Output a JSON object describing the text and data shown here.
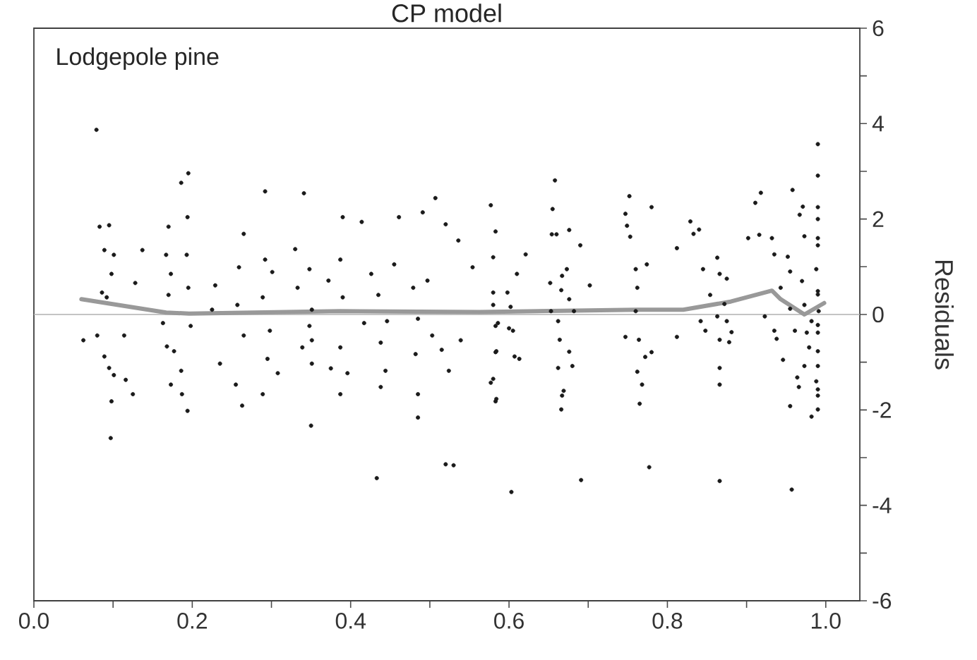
{
  "chart_data": {
    "type": "scatter",
    "title": "CP model",
    "ylabel": "Residuals",
    "annotations": [
      "Lodgepole pine"
    ],
    "xlim": [
      0,
      1.043
    ],
    "ylim": [
      -6,
      6
    ],
    "xticks": [
      {
        "value": 0,
        "label": "0.0"
      },
      {
        "value": 0.1,
        "label": null
      },
      {
        "value": 0.2,
        "label": "0.2"
      },
      {
        "value": 0.3,
        "label": null
      },
      {
        "value": 0.4,
        "label": "0.4"
      },
      {
        "value": 0.5,
        "label": null
      },
      {
        "value": 0.6,
        "label": "0.6"
      },
      {
        "value": 0.7,
        "label": null
      },
      {
        "value": 0.8,
        "label": "0.8"
      },
      {
        "value": 0.9,
        "label": null
      },
      {
        "value": 1.0,
        "label": "1.0"
      }
    ],
    "yticks": [
      -6,
      {
        "value": -5,
        "label": null
      },
      -4,
      {
        "value": -3,
        "label": null
      },
      -2,
      {
        "value": -1,
        "label": null
      },
      0,
      {
        "value": 1,
        "label": null
      },
      2,
      {
        "value": 3,
        "label": null
      },
      4,
      {
        "value": 5,
        "label": null
      },
      6
    ],
    "ref_lines": [
      {
        "axis": "y",
        "value": 0,
        "color": "#b0b0b0"
      }
    ],
    "series": [
      {
        "color": "#1a1a1a",
        "marker": "circle",
        "x": [
          0.079,
          0.097,
          0.186,
          0.195,
          0.292,
          0.341,
          0.35,
          0.53,
          0.507,
          0.577,
          0.083,
          0.095,
          0.089,
          0.101,
          0.098,
          0.086,
          0.092,
          0.08,
          0.089,
          0.095,
          0.101,
          0.098,
          0.0625,
          0.137,
          0.128,
          0.116,
          0.125,
          0.114,
          0.17,
          0.167,
          0.173,
          0.17,
          0.163,
          0.168,
          0.177,
          0.173,
          0.193,
          0.195,
          0.198,
          0.187,
          0.194,
          0.194,
          0.186,
          0.265,
          0.259,
          0.257,
          0.265,
          0.255,
          0.263,
          0.229,
          0.235,
          0.225,
          0.292,
          0.289,
          0.298,
          0.295,
          0.289,
          0.308,
          0.301,
          0.348,
          0.351,
          0.348,
          0.351,
          0.351,
          0.33,
          0.339,
          0.333,
          0.39,
          0.387,
          0.39,
          0.387,
          0.396,
          0.387,
          0.375,
          0.372,
          0.414,
          0.417,
          0.426,
          0.435,
          0.438,
          0.444,
          0.438,
          0.455,
          0.461,
          0.446,
          0.479,
          0.485,
          0.482,
          0.485,
          0.485,
          0.491,
          0.497,
          0.503,
          0.515,
          0.524,
          0.52,
          0.536,
          0.554,
          0.539,
          0.58,
          0.583,
          0.583,
          0.577,
          0.583,
          0.583,
          0.58,
          0.58,
          0.586,
          0.584,
          0.58,
          0.584,
          0.598,
          0.602,
          0.605,
          0.607,
          0.613,
          0.61,
          0.621,
          0.6,
          0.652,
          0.653,
          0.658,
          0.655,
          0.654,
          0.66,
          0.662,
          0.664,
          0.662,
          0.666,
          0.667,
          0.669,
          0.673,
          0.667,
          0.666,
          0.676,
          0.676,
          0.68,
          0.676,
          0.682,
          0.69,
          0.702,
          0.752,
          0.747,
          0.749,
          0.753,
          0.747,
          0.76,
          0.762,
          0.76,
          0.764,
          0.762,
          0.768,
          0.765,
          0.772,
          0.78,
          0.774,
          0.78,
          0.433,
          0.52,
          0.603,
          0.691,
          0.777,
          0.866,
          0.957,
          0.812,
          0.812,
          0.829,
          0.833,
          0.84,
          0.845,
          0.842,
          0.848,
          0.854,
          0.863,
          0.866,
          0.863,
          0.866,
          0.866,
          0.866,
          0.872,
          0.875,
          0.875,
          0.878,
          0.881,
          0.902,
          0.911,
          0.918,
          0.916,
          0.932,
          0.935,
          0.923,
          0.935,
          0.938,
          0.943,
          0.946,
          0.952,
          0.955,
          0.955,
          0.958,
          0.955,
          0.961,
          0.964,
          0.966,
          0.967,
          0.971,
          0.973,
          0.97,
          0.973,
          0.976,
          0.973,
          0.979,
          0.982,
          0.988,
          0.99,
          0.988,
          0.991,
          0.99,
          0.99,
          0.99,
          0.99,
          0.99,
          0.99,
          0.99,
          0.99,
          0.99,
          0.99,
          0.99,
          0.99,
          0.99,
          0.982,
          0.99
        ],
        "values": [
          3.87,
          -2.59,
          2.76,
          2.96,
          2.58,
          2.54,
          -2.33,
          -3.16,
          2.44,
          2.29,
          1.84,
          1.87,
          1.35,
          1.25,
          0.85,
          0.46,
          0.36,
          -0.44,
          -0.88,
          -1.12,
          -1.27,
          -1.82,
          -0.54,
          1.35,
          0.66,
          -1.37,
          -1.67,
          -0.44,
          1.84,
          1.25,
          0.85,
          0.41,
          -0.18,
          -0.67,
          -0.77,
          -1.47,
          1.25,
          0.56,
          -0.24,
          -1.67,
          -2.02,
          2.04,
          -1.18,
          1.69,
          0.99,
          0.2,
          -0.44,
          -1.47,
          -1.91,
          0.61,
          -1.03,
          0.1,
          1.15,
          0.36,
          -0.34,
          -0.93,
          -1.67,
          -1.23,
          0.89,
          0.95,
          0.1,
          -0.24,
          -0.54,
          -1.03,
          1.37,
          -0.69,
          0.56,
          2.04,
          1.15,
          0.36,
          -0.69,
          -1.23,
          -1.67,
          -1.13,
          0.71,
          1.94,
          -0.18,
          0.85,
          0.41,
          -0.59,
          -1.18,
          -1.52,
          1.05,
          2.04,
          -0.14,
          0.56,
          -0.09,
          -0.83,
          -1.67,
          -2.16,
          2.14,
          0.71,
          -0.44,
          -0.74,
          -1.18,
          1.89,
          1.55,
          0.99,
          -0.54,
          0.46,
          -0.24,
          -0.79,
          -1.43,
          -1.82,
          1.74,
          1.2,
          0.2,
          -0.18,
          -0.77,
          -1.35,
          -1.77,
          0.46,
          0.16,
          -0.34,
          -0.88,
          -0.93,
          0.85,
          1.26,
          -0.29,
          0.66,
          0.07,
          2.81,
          2.21,
          1.68,
          1.68,
          -0.14,
          -0.53,
          -1.12,
          -1.99,
          -1.7,
          -1.6,
          0.95,
          0.81,
          0.51,
          0.32,
          -0.78,
          -1.08,
          1.77,
          0.07,
          1.45,
          0.61,
          2.48,
          2.11,
          1.86,
          1.63,
          -0.47,
          0.95,
          0.56,
          0.07,
          -0.53,
          -1.2,
          -1.47,
          -1.87,
          -0.89,
          -0.79,
          1.05,
          2.25,
          -3.43,
          -3.14,
          -3.72,
          -3.47,
          -3.2,
          -3.49,
          -3.67,
          1.39,
          -0.47,
          1.95,
          1.69,
          1.78,
          0.95,
          -0.14,
          -0.34,
          0.41,
          1.19,
          0.85,
          -0.04,
          -0.53,
          -1.12,
          -1.47,
          0.22,
          -0.14,
          0.75,
          -0.58,
          -0.37,
          1.6,
          2.34,
          2.55,
          1.67,
          1.6,
          1.26,
          -0.04,
          -0.34,
          -0.51,
          0.56,
          -0.95,
          1.21,
          0.12,
          -1.92,
          2.61,
          0.9,
          -0.34,
          -1.32,
          -1.52,
          2.09,
          2.26,
          1.64,
          0.7,
          0.2,
          -0.38,
          -1.08,
          -0.69,
          -2.14,
          -1.4,
          1.6,
          0.95,
          0.07,
          -0.22,
          3.57,
          0.42,
          2.25,
          2.91,
          2.0,
          1.45,
          0.49,
          -0.38,
          -0.77,
          -1.57,
          -1.99,
          -1.7,
          -0.14,
          -1.08
        ]
      },
      {
        "type": "line",
        "color": "#999999",
        "marker": "none",
        "x": [
          0.06,
          0.167,
          0.196,
          0.387,
          0.5625,
          0.762,
          0.82,
          0.88,
          0.932,
          0.943,
          0.973,
          0.998
        ],
        "values": [
          0.32,
          0.04,
          0.02,
          0.07,
          0.05,
          0.1,
          0.1,
          0.27,
          0.5,
          0.32,
          0.0,
          0.24
        ]
      }
    ]
  }
}
